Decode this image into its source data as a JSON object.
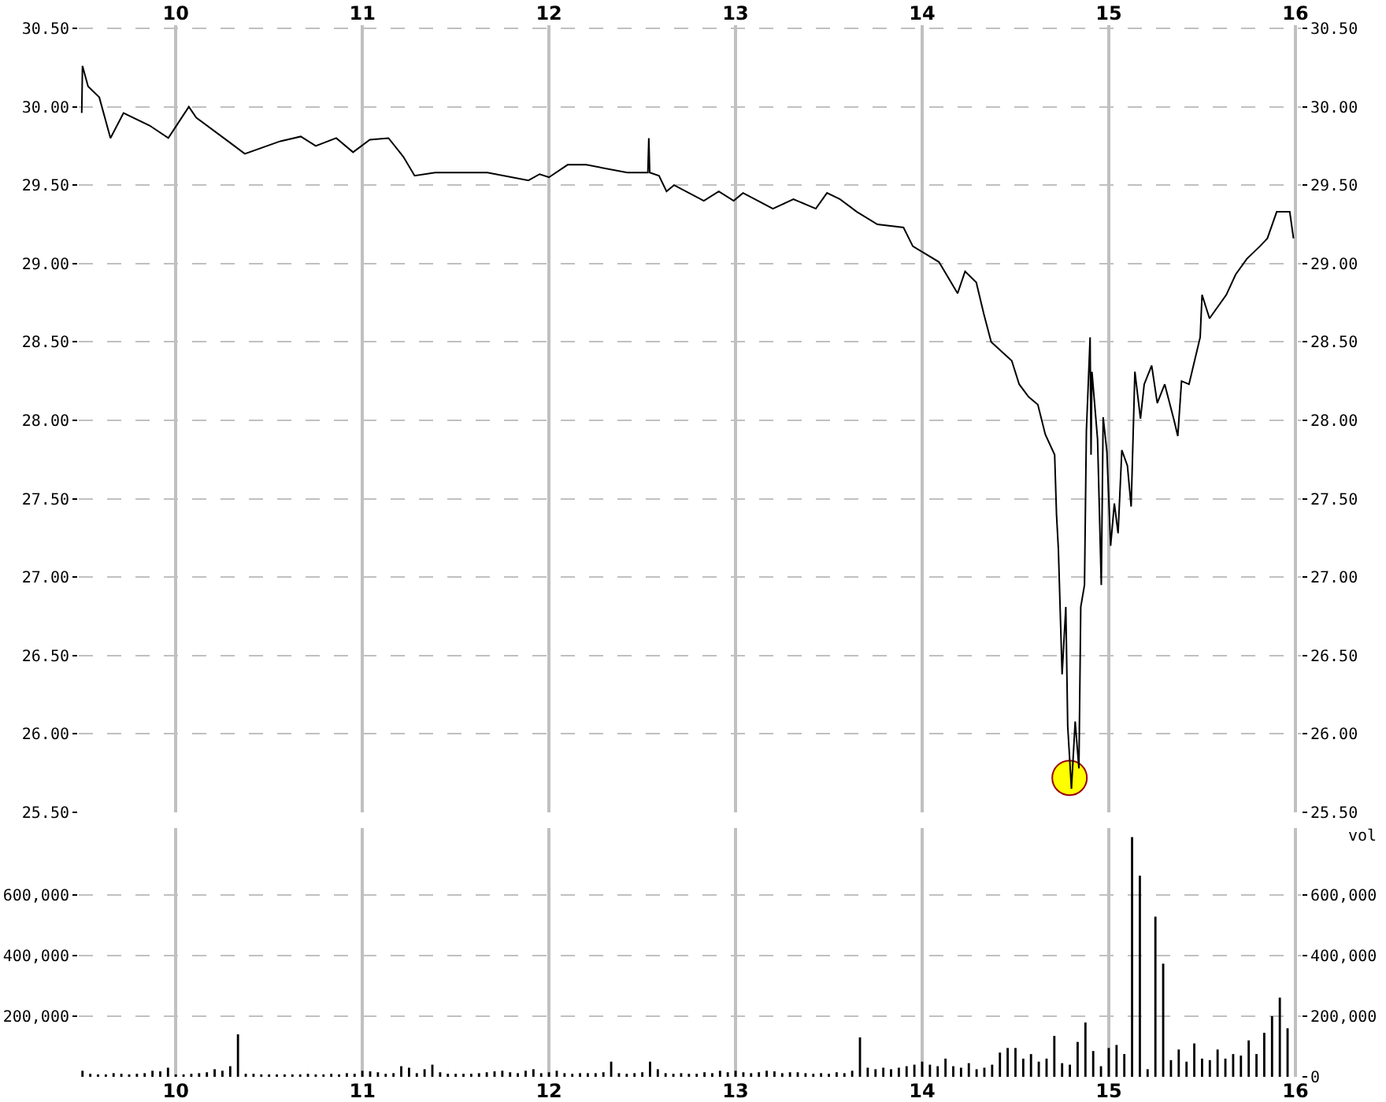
{
  "chart_data": [
    {
      "type": "line",
      "xlim": [
        9.48,
        16.03
      ],
      "xticks": [
        10,
        11,
        12,
        13,
        14,
        15,
        16
      ],
      "ylim": [
        25.5,
        30.52
      ],
      "yticks": [
        {
          "value": 25.5,
          "label": "25.50"
        },
        {
          "value": 26,
          "label": "26.00"
        },
        {
          "value": 26.5,
          "label": "26.50"
        },
        {
          "value": 27,
          "label": "27.00"
        },
        {
          "value": 27.5,
          "label": "27.50"
        },
        {
          "value": 28,
          "label": "28.00"
        },
        {
          "value": 28.5,
          "label": "28.50"
        },
        {
          "value": 29,
          "label": "29.00"
        },
        {
          "value": 29.5,
          "label": "29.50"
        },
        {
          "value": 30,
          "label": "30.00"
        },
        {
          "value": 30.5,
          "label": "30.50"
        }
      ],
      "y2lim": [
        25.5,
        30.52
      ],
      "y2ticks": [
        {
          "value": 25.5,
          "label": "25.50"
        },
        {
          "value": 26,
          "label": "26.00"
        },
        {
          "value": 26.5,
          "label": "26.50"
        },
        {
          "value": 27,
          "label": "27.00"
        },
        {
          "value": 27.5,
          "label": "27.50"
        },
        {
          "value": 28,
          "label": "28.00"
        },
        {
          "value": 28.5,
          "label": "28.50"
        },
        {
          "value": 29,
          "label": "29.00"
        },
        {
          "value": 29.5,
          "label": "29.50"
        },
        {
          "value": 30,
          "label": "30.00"
        },
        {
          "value": 30.5,
          "label": "30.50"
        }
      ],
      "grid": true,
      "marker": "none",
      "line_style": "solid",
      "series": [
        {
          "type": "scatter",
          "color": "#ffff00",
          "marker": "circle",
          "x": [
            14.79
          ],
          "values": [
            25.72
          ]
        },
        {
          "color": "#000000",
          "x": [
            9.496,
            9.5,
            9.53,
            9.59,
            9.65,
            9.72,
            9.86,
            9.96,
            10.07,
            10.11,
            10.28,
            10.37,
            10.56,
            10.67,
            10.75,
            10.86,
            10.95,
            11.04,
            11.14,
            11.22,
            11.28,
            11.39,
            11.67,
            11.89,
            11.95,
            12.0,
            12.1,
            12.2,
            12.42,
            12.53,
            12.535,
            12.54,
            12.59,
            12.63,
            12.67,
            12.83,
            12.91,
            12.99,
            13.04,
            13.2,
            13.31,
            13.43,
            13.49,
            13.56,
            13.65,
            13.76,
            13.9,
            13.95,
            14.09,
            14.19,
            14.23,
            14.29,
            14.33,
            14.37,
            14.48,
            14.52,
            14.57,
            14.62,
            14.66,
            14.71,
            14.72,
            14.73,
            14.75,
            14.77,
            14.78,
            14.8,
            14.82,
            14.84,
            14.85,
            14.87,
            14.88,
            14.9,
            14.905,
            14.91,
            14.94,
            14.96,
            14.97,
            14.99,
            15.01,
            15.03,
            15.05,
            15.07,
            15.1,
            15.12,
            15.14,
            15.17,
            15.19,
            15.23,
            15.26,
            15.3,
            15.35,
            15.37,
            15.39,
            15.43,
            15.46,
            15.49,
            15.5,
            15.54,
            15.63,
            15.68,
            15.74,
            15.81,
            15.85,
            15.9,
            15.97,
            15.99
          ],
          "values": [
            29.96,
            30.26,
            30.13,
            30.06,
            29.8,
            29.96,
            29.88,
            29.8,
            30.0,
            29.93,
            29.78,
            29.7,
            29.78,
            29.81,
            29.75,
            29.8,
            29.71,
            29.79,
            29.8,
            29.68,
            29.56,
            29.58,
            29.58,
            29.53,
            29.57,
            29.55,
            29.63,
            29.63,
            29.58,
            29.58,
            29.8,
            29.58,
            29.56,
            29.46,
            29.5,
            29.4,
            29.46,
            29.4,
            29.45,
            29.35,
            29.41,
            29.35,
            29.45,
            29.41,
            29.33,
            29.25,
            29.23,
            29.11,
            29.01,
            28.81,
            28.95,
            28.88,
            28.68,
            28.5,
            28.38,
            28.23,
            28.15,
            28.1,
            27.91,
            27.78,
            27.4,
            27.18,
            26.38,
            26.81,
            26.05,
            25.65,
            26.08,
            25.78,
            26.81,
            26.95,
            27.93,
            28.53,
            27.78,
            28.31,
            27.88,
            26.95,
            28.02,
            27.8,
            27.2,
            27.47,
            27.28,
            27.81,
            27.71,
            27.45,
            28.31,
            28.01,
            28.23,
            28.35,
            28.11,
            28.23,
            28.0,
            27.9,
            28.25,
            28.23,
            28.38,
            28.53,
            28.8,
            28.65,
            28.8,
            28.93,
            29.03,
            29.11,
            29.16,
            29.33,
            29.33,
            29.16
          ]
        }
      ]
    },
    {
      "type": "bar",
      "color": "#000000",
      "xlim": [
        9.48,
        16.03
      ],
      "xticks": [
        10,
        11,
        12,
        13,
        14,
        15,
        16
      ],
      "ylim": [
        0,
        820000
      ],
      "yticks": [
        {
          "value": 200000,
          "label": "200,000"
        },
        {
          "value": 400000,
          "label": "400,000"
        },
        {
          "value": 600000,
          "label": "600,000"
        }
      ],
      "y2lim": [
        0,
        820000
      ],
      "y2ticks": [
        0,
        {
          "value": 200000,
          "label": "200,000"
        },
        {
          "value": 400000,
          "label": "400,000"
        },
        {
          "value": 600000,
          "label": "600,000"
        }
      ],
      "y2label": "vol",
      "grid": true,
      "x": [
        9.5,
        9.5417,
        9.5833,
        9.625,
        9.6667,
        9.7083,
        9.75,
        9.7917,
        9.8333,
        9.875,
        9.9167,
        9.9583,
        10,
        10.0417,
        10.0833,
        10.125,
        10.1667,
        10.2083,
        10.25,
        10.2917,
        10.3333,
        10.375,
        10.4167,
        10.4583,
        10.5,
        10.5417,
        10.5833,
        10.625,
        10.6667,
        10.7083,
        10.75,
        10.7917,
        10.8333,
        10.875,
        10.9167,
        10.9583,
        11,
        11.0417,
        11.0833,
        11.125,
        11.1667,
        11.2083,
        11.25,
        11.2917,
        11.3333,
        11.375,
        11.4167,
        11.4583,
        11.5,
        11.5417,
        11.5833,
        11.625,
        11.6667,
        11.7083,
        11.75,
        11.7917,
        11.8333,
        11.875,
        11.9167,
        11.9583,
        12,
        12.0417,
        12.0833,
        12.125,
        12.1667,
        12.2083,
        12.25,
        12.2917,
        12.3333,
        12.375,
        12.4167,
        12.4583,
        12.5,
        12.5417,
        12.5833,
        12.625,
        12.6667,
        12.7083,
        12.75,
        12.7917,
        12.8333,
        12.875,
        12.9167,
        12.9583,
        13,
        13.0417,
        13.0833,
        13.125,
        13.1667,
        13.2083,
        13.25,
        13.2917,
        13.3333,
        13.375,
        13.4167,
        13.4583,
        13.5,
        13.5417,
        13.5833,
        13.625,
        13.6667,
        13.7083,
        13.75,
        13.7917,
        13.8333,
        13.875,
        13.9167,
        13.9583,
        14,
        14.0417,
        14.0833,
        14.125,
        14.1667,
        14.2083,
        14.25,
        14.2917,
        14.3333,
        14.375,
        14.4167,
        14.4583,
        14.5,
        14.5417,
        14.5833,
        14.625,
        14.6667,
        14.7083,
        14.75,
        14.7917,
        14.8333,
        14.875,
        14.9167,
        14.9583,
        15,
        15.0417,
        15.0833,
        15.125,
        15.1667,
        15.2083,
        15.25,
        15.2917,
        15.3333,
        15.375,
        15.4167,
        15.4583,
        15.5,
        15.5417,
        15.5833,
        15.625,
        15.6667,
        15.7083,
        15.75,
        15.7917,
        15.8333,
        15.875,
        15.9167,
        15.9583
      ],
      "values": [
        20000,
        10000,
        8000,
        8000,
        12000,
        10000,
        8000,
        10000,
        12000,
        20000,
        18000,
        30000,
        8000,
        8000,
        10000,
        12000,
        15000,
        25000,
        20000,
        35000,
        140000,
        10000,
        10000,
        8000,
        8000,
        8000,
        8000,
        8000,
        8000,
        10000,
        8000,
        8000,
        10000,
        8000,
        12000,
        10000,
        20000,
        18000,
        15000,
        10000,
        12000,
        35000,
        30000,
        12000,
        25000,
        40000,
        15000,
        10000,
        10000,
        10000,
        10000,
        12000,
        15000,
        18000,
        20000,
        15000,
        12000,
        20000,
        25000,
        12000,
        15000,
        20000,
        12000,
        10000,
        12000,
        12000,
        12000,
        15000,
        50000,
        12000,
        10000,
        12000,
        15000,
        50000,
        25000,
        12000,
        10000,
        12000,
        10000,
        10000,
        15000,
        12000,
        20000,
        15000,
        20000,
        15000,
        12000,
        15000,
        20000,
        18000,
        12000,
        15000,
        15000,
        12000,
        10000,
        12000,
        10000,
        15000,
        12000,
        20000,
        130000,
        30000,
        25000,
        30000,
        25000,
        30000,
        35000,
        40000,
        50000,
        40000,
        35000,
        60000,
        35000,
        30000,
        45000,
        25000,
        30000,
        40000,
        80000,
        95000,
        95000,
        60000,
        75000,
        50000,
        60000,
        135000,
        45000,
        40000,
        115000,
        179000,
        85000,
        35000,
        95000,
        105000,
        75000,
        790000,
        663000,
        25000,
        528000,
        373000,
        55000,
        90000,
        50000,
        110000,
        60000,
        55000,
        90000,
        60000,
        75000,
        70000,
        120000,
        75000,
        145000,
        200000,
        261000,
        160000
      ]
    }
  ]
}
